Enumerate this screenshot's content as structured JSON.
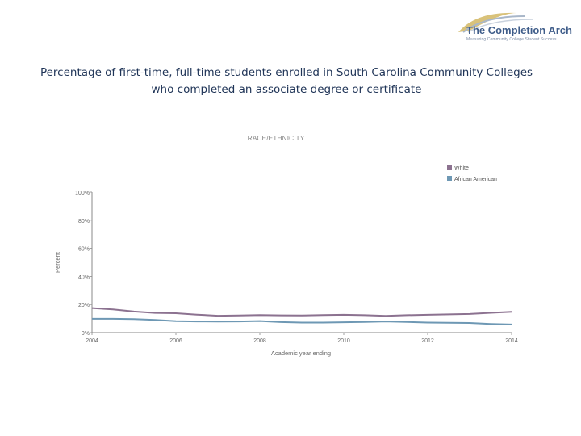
{
  "logo": {
    "name": "The Completion Arch",
    "tagline": "Measuring Community College Student Success"
  },
  "title_lines": [
    "Percentage of first-time, full-time students enrolled in South Carolina Community Colleges",
    "who completed an associate degree or certificate"
  ],
  "colors": {
    "white_series": "#8c7290",
    "african_american_series": "#6e98b4",
    "axis": "#8a8a8a",
    "title": "#1f3457"
  },
  "chart_data": {
    "type": "line",
    "title": "RACE/ETHNICITY",
    "xlabel": "Academic year ending",
    "ylabel": "Percent",
    "xlim": [
      2004,
      2014
    ],
    "ylim": [
      0,
      100
    ],
    "x_ticks": [
      "2004",
      "2006",
      "2008",
      "2010",
      "2012",
      "2014"
    ],
    "y_ticks": [
      "0%",
      "20%",
      "40%",
      "60%",
      "80%",
      "100%"
    ],
    "legend_position": "top-right",
    "x": [
      2004,
      2004.5,
      2005,
      2005.5,
      2006,
      2006.5,
      2007,
      2007.5,
      2008,
      2008.5,
      2009,
      2009.5,
      2010,
      2010.5,
      2011,
      2011.5,
      2012,
      2012.5,
      2013,
      2013.5,
      2014
    ],
    "series": [
      {
        "name": "White",
        "values": [
          17.5,
          16.5,
          15.0,
          14.0,
          13.8,
          12.8,
          12.0,
          12.2,
          12.5,
          12.3,
          12.2,
          12.5,
          12.7,
          12.4,
          11.9,
          12.4,
          12.7,
          13.0,
          13.3,
          14.1,
          14.8
        ]
      },
      {
        "name": "African American",
        "values": [
          9.8,
          9.8,
          9.6,
          9.0,
          8.2,
          8.0,
          7.9,
          8.0,
          8.3,
          7.5,
          7.2,
          7.2,
          7.4,
          7.6,
          8.0,
          7.6,
          7.2,
          7.0,
          6.9,
          6.2,
          5.8
        ]
      }
    ]
  }
}
